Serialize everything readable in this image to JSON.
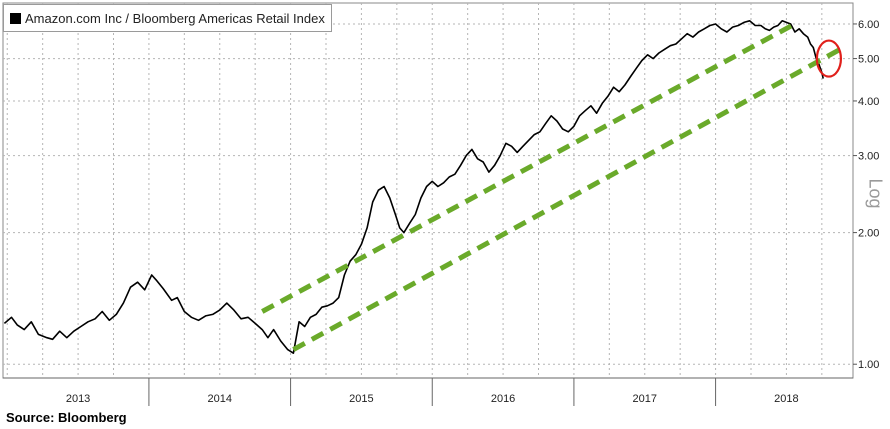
{
  "chart_data": {
    "type": "line",
    "title": "",
    "legend": "Amazon.com Inc / Bloomberg Americas Retail Index",
    "source": "Source: Bloomberg",
    "scale_label": "Log",
    "y_scale": "log",
    "ylim": [
      0.93,
      6.7
    ],
    "xlim": [
      2012.97,
      2018.97
    ],
    "grid": true,
    "y_ticks": [
      1.0,
      2.0,
      3.0,
      4.0,
      5.0,
      6.0
    ],
    "y_tick_labels": [
      "1.00",
      "2.00",
      "3.00",
      "4.00",
      "5.00",
      "6.00"
    ],
    "x_labels": [
      {
        "label": "2013",
        "x": 2013.5
      },
      {
        "label": "2014",
        "x": 2014.5
      },
      {
        "label": "2015",
        "x": 2015.5
      },
      {
        "label": "2016",
        "x": 2016.5
      },
      {
        "label": "2017",
        "x": 2017.5
      },
      {
        "label": "2018",
        "x": 2018.5
      }
    ],
    "x_boundaries": [
      2014.0,
      2015.0,
      2016.0,
      2017.0,
      2018.0
    ],
    "series": [
      {
        "name": "Amazon.com Inc / Bloomberg Americas Retail Index",
        "color": "#000000",
        "points": [
          [
            2012.98,
            1.24
          ],
          [
            2013.03,
            1.28
          ],
          [
            2013.07,
            1.23
          ],
          [
            2013.12,
            1.2
          ],
          [
            2013.17,
            1.25
          ],
          [
            2013.22,
            1.17
          ],
          [
            2013.28,
            1.15
          ],
          [
            2013.32,
            1.14
          ],
          [
            2013.37,
            1.19
          ],
          [
            2013.42,
            1.15
          ],
          [
            2013.47,
            1.19
          ],
          [
            2013.52,
            1.22
          ],
          [
            2013.57,
            1.25
          ],
          [
            2013.62,
            1.27
          ],
          [
            2013.67,
            1.32
          ],
          [
            2013.72,
            1.26
          ],
          [
            2013.77,
            1.3
          ],
          [
            2013.82,
            1.38
          ],
          [
            2013.87,
            1.5
          ],
          [
            2013.92,
            1.54
          ],
          [
            2013.97,
            1.48
          ],
          [
            2014.02,
            1.6
          ],
          [
            2014.05,
            1.56
          ],
          [
            2014.1,
            1.49
          ],
          [
            2014.16,
            1.4
          ],
          [
            2014.2,
            1.42
          ],
          [
            2014.25,
            1.32
          ],
          [
            2014.3,
            1.28
          ],
          [
            2014.35,
            1.26
          ],
          [
            2014.4,
            1.29
          ],
          [
            2014.45,
            1.3
          ],
          [
            2014.5,
            1.33
          ],
          [
            2014.55,
            1.38
          ],
          [
            2014.6,
            1.33
          ],
          [
            2014.65,
            1.27
          ],
          [
            2014.7,
            1.28
          ],
          [
            2014.75,
            1.24
          ],
          [
            2014.8,
            1.2
          ],
          [
            2014.84,
            1.15
          ],
          [
            2014.88,
            1.2
          ],
          [
            2014.93,
            1.13
          ],
          [
            2014.98,
            1.08
          ],
          [
            2015.02,
            1.06
          ],
          [
            2015.04,
            1.15
          ],
          [
            2015.06,
            1.25
          ],
          [
            2015.1,
            1.22
          ],
          [
            2015.14,
            1.28
          ],
          [
            2015.18,
            1.3
          ],
          [
            2015.22,
            1.35
          ],
          [
            2015.26,
            1.36
          ],
          [
            2015.3,
            1.38
          ],
          [
            2015.34,
            1.42
          ],
          [
            2015.38,
            1.6
          ],
          [
            2015.42,
            1.72
          ],
          [
            2015.46,
            1.78
          ],
          [
            2015.5,
            1.88
          ],
          [
            2015.54,
            2.05
          ],
          [
            2015.58,
            2.35
          ],
          [
            2015.62,
            2.5
          ],
          [
            2015.66,
            2.55
          ],
          [
            2015.7,
            2.4
          ],
          [
            2015.74,
            2.2
          ],
          [
            2015.77,
            2.05
          ],
          [
            2015.8,
            2.0
          ],
          [
            2015.84,
            2.1
          ],
          [
            2015.88,
            2.2
          ],
          [
            2015.92,
            2.4
          ],
          [
            2015.96,
            2.55
          ],
          [
            2016.0,
            2.62
          ],
          [
            2016.04,
            2.55
          ],
          [
            2016.08,
            2.6
          ],
          [
            2016.12,
            2.68
          ],
          [
            2016.16,
            2.72
          ],
          [
            2016.2,
            2.85
          ],
          [
            2016.24,
            3.0
          ],
          [
            2016.28,
            3.1
          ],
          [
            2016.32,
            2.95
          ],
          [
            2016.36,
            2.9
          ],
          [
            2016.4,
            2.75
          ],
          [
            2016.44,
            2.85
          ],
          [
            2016.48,
            3.0
          ],
          [
            2016.52,
            3.2
          ],
          [
            2016.56,
            3.15
          ],
          [
            2016.6,
            3.05
          ],
          [
            2016.64,
            3.15
          ],
          [
            2016.68,
            3.25
          ],
          [
            2016.72,
            3.35
          ],
          [
            2016.76,
            3.4
          ],
          [
            2016.8,
            3.55
          ],
          [
            2016.84,
            3.7
          ],
          [
            2016.88,
            3.6
          ],
          [
            2016.92,
            3.45
          ],
          [
            2016.96,
            3.4
          ],
          [
            2017.0,
            3.5
          ],
          [
            2017.04,
            3.7
          ],
          [
            2017.08,
            3.8
          ],
          [
            2017.12,
            3.9
          ],
          [
            2017.16,
            3.75
          ],
          [
            2017.2,
            3.95
          ],
          [
            2017.24,
            4.1
          ],
          [
            2017.28,
            4.3
          ],
          [
            2017.32,
            4.2
          ],
          [
            2017.36,
            4.35
          ],
          [
            2017.4,
            4.55
          ],
          [
            2017.44,
            4.75
          ],
          [
            2017.48,
            4.95
          ],
          [
            2017.52,
            5.1
          ],
          [
            2017.56,
            5.0
          ],
          [
            2017.6,
            5.15
          ],
          [
            2017.64,
            5.25
          ],
          [
            2017.68,
            5.35
          ],
          [
            2017.72,
            5.4
          ],
          [
            2017.76,
            5.55
          ],
          [
            2017.8,
            5.7
          ],
          [
            2017.84,
            5.6
          ],
          [
            2017.88,
            5.75
          ],
          [
            2017.92,
            5.85
          ],
          [
            2017.96,
            5.95
          ],
          [
            2018.0,
            6.0
          ],
          [
            2018.04,
            5.85
          ],
          [
            2018.08,
            5.75
          ],
          [
            2018.12,
            5.9
          ],
          [
            2018.16,
            5.95
          ],
          [
            2018.2,
            6.05
          ],
          [
            2018.24,
            6.1
          ],
          [
            2018.28,
            5.95
          ],
          [
            2018.32,
            5.95
          ],
          [
            2018.35,
            5.85
          ],
          [
            2018.38,
            5.8
          ],
          [
            2018.41,
            5.9
          ],
          [
            2018.44,
            5.95
          ],
          [
            2018.47,
            6.1
          ],
          [
            2018.5,
            6.05
          ],
          [
            2018.53,
            6.0
          ],
          [
            2018.56,
            5.75
          ],
          [
            2018.59,
            5.85
          ],
          [
            2018.62,
            5.7
          ],
          [
            2018.65,
            5.6
          ],
          [
            2018.67,
            5.4
          ],
          [
            2018.69,
            5.3
          ],
          [
            2018.71,
            5.0
          ],
          [
            2018.73,
            4.85
          ],
          [
            2018.75,
            4.65
          ],
          [
            2018.76,
            4.5
          ]
        ]
      }
    ],
    "annotations": [
      {
        "type": "trend-line",
        "color": "#6aaa2a",
        "from": [
          2014.8,
          1.32
        ],
        "to": [
          2018.58,
          6.05
        ]
      },
      {
        "type": "trend-line",
        "color": "#6aaa2a",
        "from": [
          2015.02,
          1.08
        ],
        "to": [
          2018.88,
          5.25
        ]
      },
      {
        "type": "highlight-ellipse",
        "color": "#e0201b",
        "center": [
          2018.8,
          5.0
        ]
      }
    ]
  }
}
